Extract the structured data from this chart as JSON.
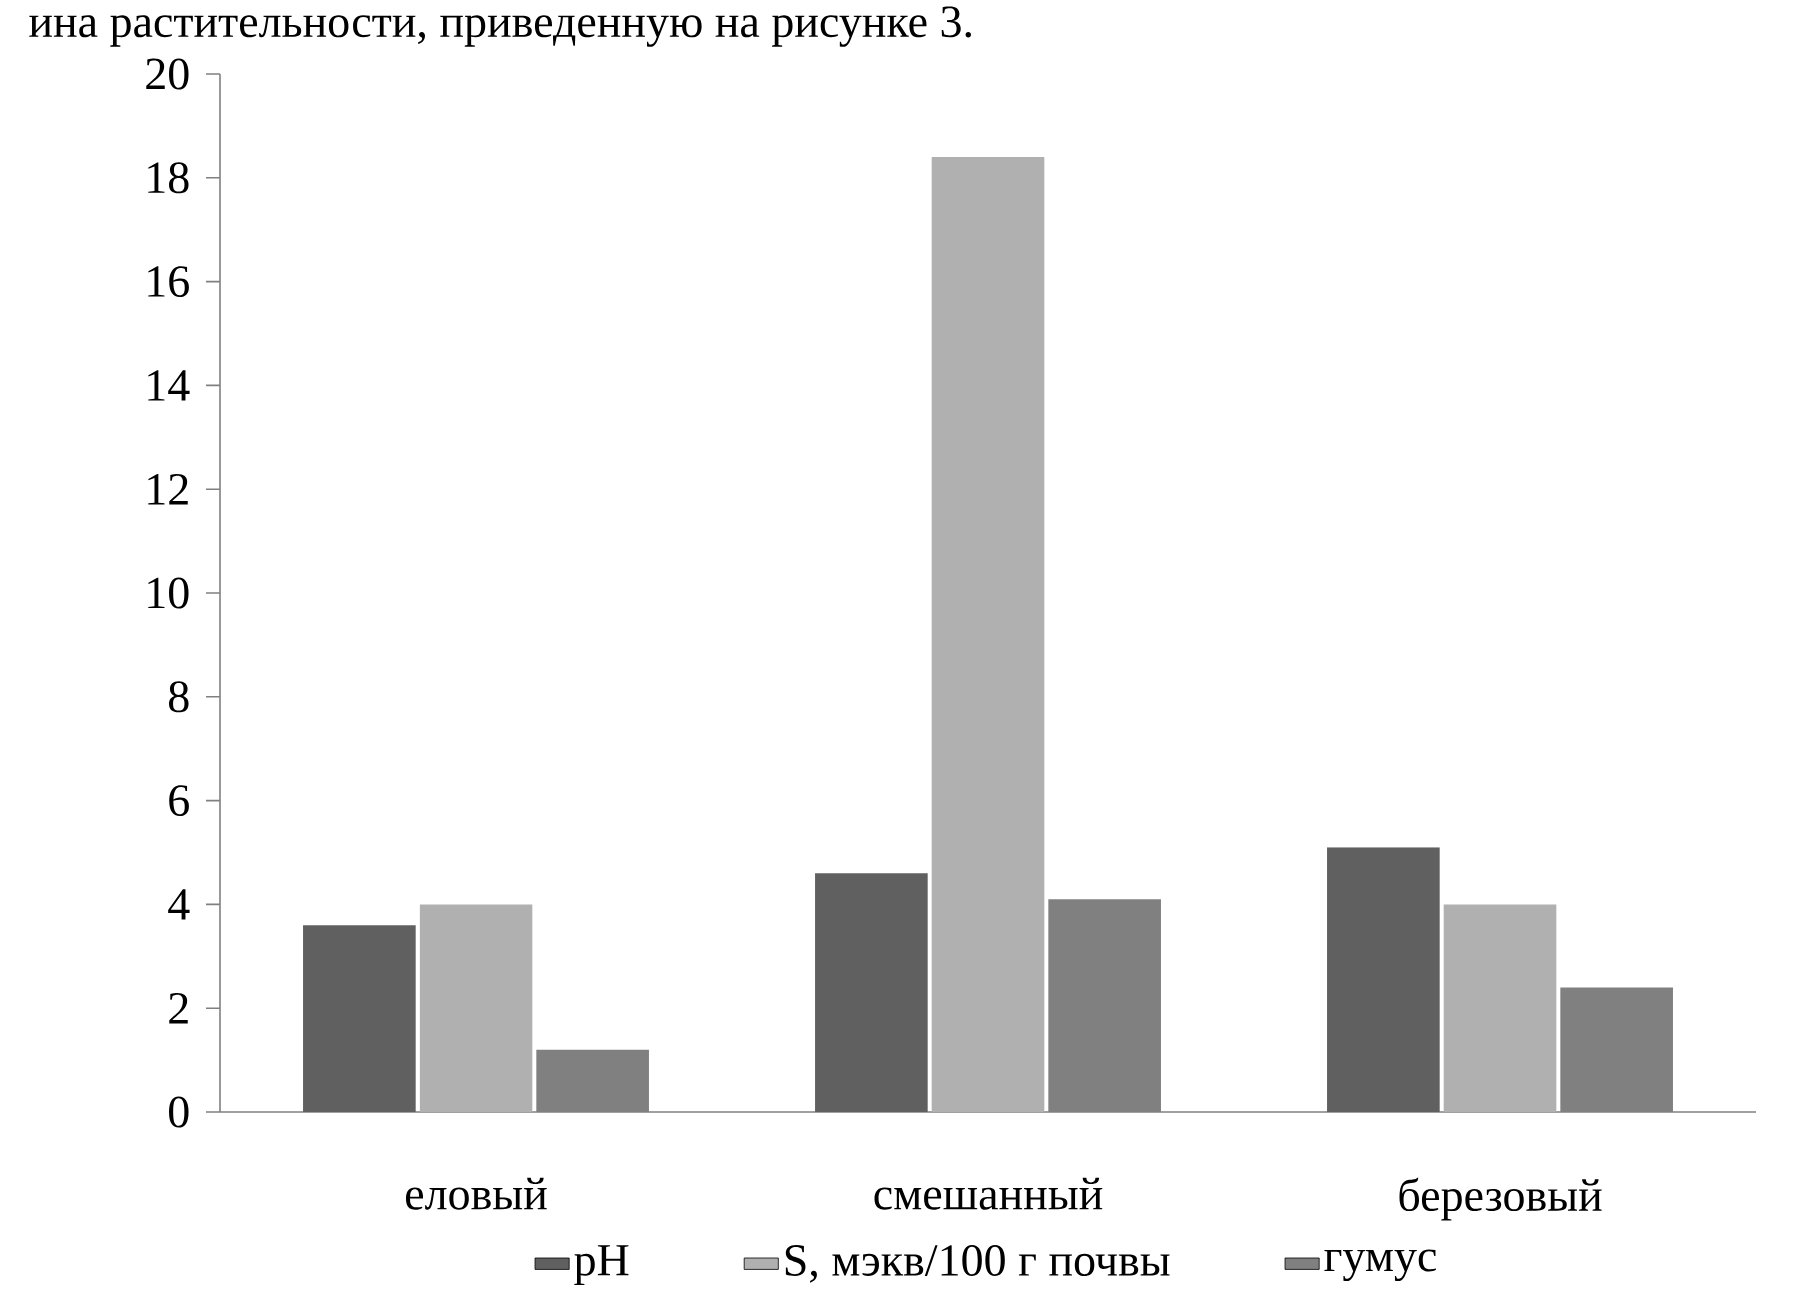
{
  "chart_data": {
    "type": "bar",
    "annotations": [
      "ина растительности, приведенную на рисунке 3."
    ],
    "categories": [
      "еловый",
      "смешанный",
      "березовый"
    ],
    "series": [
      {
        "name": "pH",
        "color": "#606060",
        "values": [
          3.6,
          4.6,
          5.1
        ]
      },
      {
        "name": "S, мэкв/100 г почвы",
        "color": "#b0b0b0",
        "values": [
          4.0,
          18.4,
          4.0
        ]
      },
      {
        "name": "гумус",
        "color": "#808080",
        "values": [
          1.2,
          4.1,
          2.4
        ]
      }
    ],
    "ylim": [
      0,
      20
    ],
    "yticks": [
      0,
      2,
      4,
      6,
      8,
      10,
      12,
      14,
      16,
      18,
      20
    ],
    "grid": false,
    "legend": "bottom"
  }
}
